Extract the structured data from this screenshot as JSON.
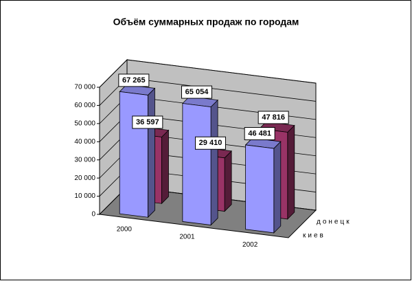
{
  "chart_data": {
    "type": "bar3d",
    "title": "Объём суммарных продаж по городам",
    "categories": [
      "2000",
      "2001",
      "2002"
    ],
    "series": [
      {
        "name": "киев",
        "color": "#9999ff",
        "values": [
          67265,
          65054,
          46481
        ],
        "value_labels": [
          "67 265",
          "65 054",
          "46 481"
        ]
      },
      {
        "name": "донецк",
        "color": "#993366",
        "values": [
          36597,
          29410,
          47816
        ],
        "value_labels": [
          "36 597",
          "29 410",
          "47 816"
        ]
      }
    ],
    "ylim": [
      0,
      70000
    ],
    "yticks": [
      0,
      {
        "value": 10000,
        "label": "10 000"
      },
      {
        "value": 20000,
        "label": "20 000"
      },
      {
        "value": 30000,
        "label": "30 000"
      },
      {
        "value": 40000,
        "label": "40 000"
      },
      {
        "value": 50000,
        "label": "50 000"
      },
      {
        "value": 60000,
        "label": "60 000"
      },
      {
        "value": 70000,
        "label": "70 000"
      }
    ],
    "grid": true
  }
}
